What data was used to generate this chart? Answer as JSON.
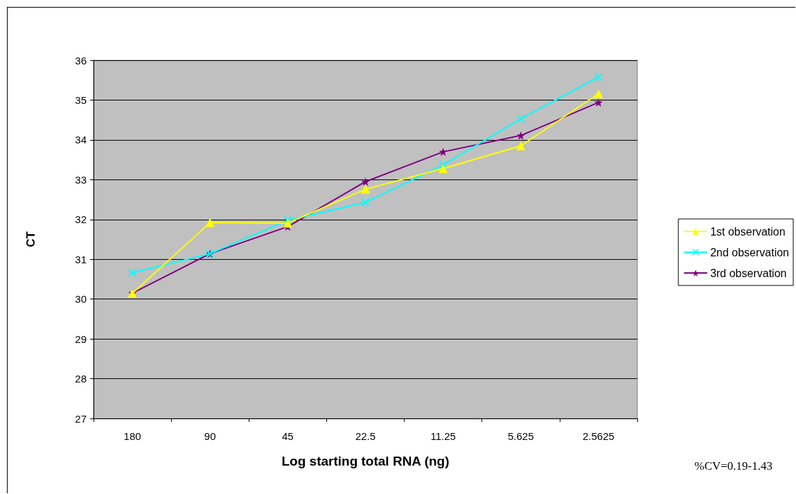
{
  "chart_data": {
    "type": "line",
    "xlabel": "Log starting total RNA (ng)",
    "ylabel": "CT",
    "categories": [
      "180",
      "90",
      "45",
      "22.5",
      "11.25",
      "5.625",
      "2.5625"
    ],
    "series": [
      {
        "name": "1st observation",
        "color": "#ffff00",
        "marker": "triangle",
        "values": [
          30.14,
          31.92,
          31.91,
          32.76,
          33.28,
          33.85,
          35.16
        ]
      },
      {
        "name": "2nd observation",
        "color": "#00ffff",
        "marker": "cross",
        "values": [
          30.66,
          31.14,
          31.98,
          32.43,
          33.37,
          34.53,
          35.58
        ]
      },
      {
        "name": "3rd observation",
        "color": "#800080",
        "marker": "star",
        "values": [
          30.15,
          31.14,
          31.82,
          32.95,
          33.7,
          34.11,
          34.94
        ]
      }
    ],
    "ylim": [
      27,
      36
    ],
    "yticks": [
      27,
      28,
      29,
      30,
      31,
      32,
      33,
      34,
      35,
      36
    ],
    "grid": "y",
    "legend": "right",
    "line_style": "solid",
    "annotations": [
      "%CV=0.19-1.43"
    ]
  }
}
